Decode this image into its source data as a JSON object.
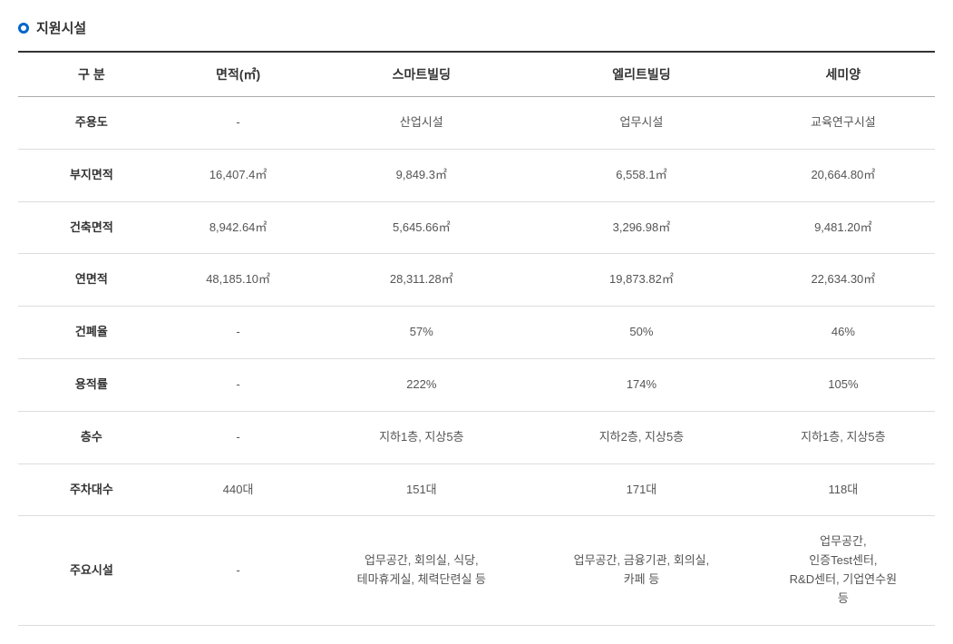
{
  "section": {
    "title": "지원시설"
  },
  "table": {
    "columns": [
      "구 분",
      "면적(㎡)",
      "스마트빌딩",
      "엘리트빌딩",
      "세미양"
    ],
    "rows": [
      {
        "label": "주용도",
        "cells": [
          "-",
          "산업시설",
          "업무시설",
          "교육연구시설"
        ]
      },
      {
        "label": "부지면적",
        "cells": [
          "16,407.4㎡",
          "9,849.3㎡",
          "6,558.1㎡",
          "20,664.80㎡"
        ]
      },
      {
        "label": "건축면적",
        "cells": [
          "8,942.64㎡",
          "5,645.66㎡",
          "3,296.98㎡",
          "9,481.20㎡"
        ]
      },
      {
        "label": "연면적",
        "cells": [
          "48,185.10㎡",
          "28,311.28㎡",
          "19,873.82㎡",
          "22,634.30㎡"
        ]
      },
      {
        "label": "건폐율",
        "cells": [
          "-",
          "57%",
          "50%",
          "46%"
        ]
      },
      {
        "label": "용적률",
        "cells": [
          "-",
          "222%",
          "174%",
          "105%"
        ]
      },
      {
        "label": "층수",
        "cells": [
          "-",
          "지하1층, 지상5층",
          "지하2층, 지상5층",
          "지하1층, 지상5층"
        ]
      },
      {
        "label": "주차대수",
        "cells": [
          "440대",
          "151대",
          "171대",
          "118대"
        ]
      },
      {
        "label": "주요시설",
        "cells": [
          "-",
          "업무공간, 회의실, 식당,\n테마휴게실, 체력단련실 등",
          "업무공간, 금융기관, 회의실,\n카페 등",
          "업무공간,\n인증Test센터,\nR&D센터, 기업연수원\n등"
        ]
      }
    ]
  },
  "style": {
    "header_border_top": "#333333",
    "header_border_bottom": "#aaaaaa",
    "row_border": "#dddddd",
    "bullet_color": "#0066cc",
    "text_color": "#555555",
    "label_color": "#333333",
    "background": "#ffffff",
    "header_fontsize": 14,
    "cell_fontsize": 13,
    "title_fontsize": 15
  }
}
